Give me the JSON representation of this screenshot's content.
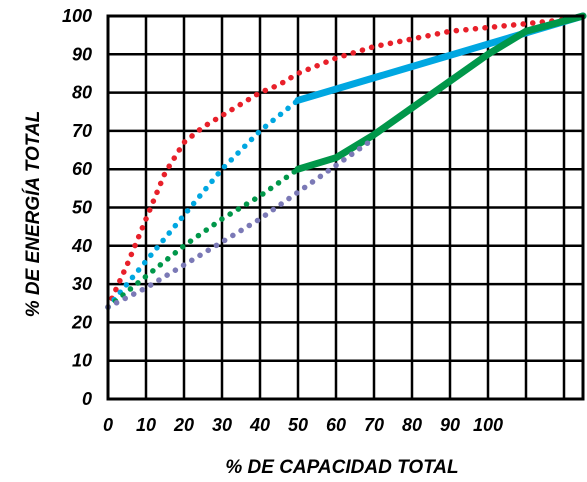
{
  "chart_data": {
    "type": "line",
    "title": "",
    "xlabel": "% DE CAPACIDAD TOTAL",
    "ylabel": "% DE ENERGÍA TOTAL",
    "xlim": [
      0,
      125
    ],
    "ylim": [
      0,
      100
    ],
    "x_ticks": [
      0,
      10,
      20,
      30,
      40,
      50,
      60,
      70,
      80,
      90,
      100
    ],
    "x_tick_labels": [
      "0",
      "10",
      "20",
      "30",
      "40",
      "50",
      "60",
      "70",
      "80",
      "90",
      "100"
    ],
    "y_ticks": [
      0,
      10,
      20,
      30,
      40,
      50,
      60,
      70,
      80,
      90,
      100
    ],
    "y_tick_labels": [
      "0",
      "10",
      "20",
      "30",
      "40",
      "50",
      "60",
      "70",
      "80",
      "90",
      "100"
    ],
    "grid": true,
    "series": [
      {
        "color": "#e8202a",
        "style": "dotted",
        "x": [
          0,
          5,
          10,
          15,
          20,
          25,
          30,
          35,
          40,
          45,
          50,
          55,
          60,
          70,
          80,
          90,
          100,
          110,
          120,
          125
        ],
        "y": [
          24,
          35,
          47,
          59,
          67,
          71,
          74,
          77,
          80,
          82,
          85,
          87,
          89,
          92,
          94,
          96,
          97,
          98,
          99,
          100
        ]
      },
      {
        "color": "#00a7e1",
        "style": "dotted",
        "x": [
          0,
          10,
          20,
          30,
          40,
          50
        ],
        "y": [
          24,
          36,
          48,
          60,
          70,
          78
        ]
      },
      {
        "color": "#00a7e1",
        "style": "solid",
        "x": [
          50,
          125
        ],
        "y": [
          78,
          100
        ]
      },
      {
        "color": "#00974a",
        "style": "dotted",
        "x": [
          0,
          10,
          20,
          30,
          40,
          50
        ],
        "y": [
          24,
          32,
          40,
          47,
          53,
          60
        ]
      },
      {
        "color": "#00974a",
        "style": "solid",
        "x": [
          50,
          60,
          70,
          80,
          90,
          100,
          110,
          125
        ],
        "y": [
          60,
          63,
          69,
          76,
          83,
          90,
          96,
          100
        ]
      },
      {
        "color": "#7b79b6",
        "style": "dotted",
        "x": [
          0,
          10,
          20,
          30,
          40,
          50,
          60,
          70
        ],
        "y": [
          24,
          29,
          35,
          41,
          47,
          54,
          61,
          68
        ]
      }
    ]
  }
}
